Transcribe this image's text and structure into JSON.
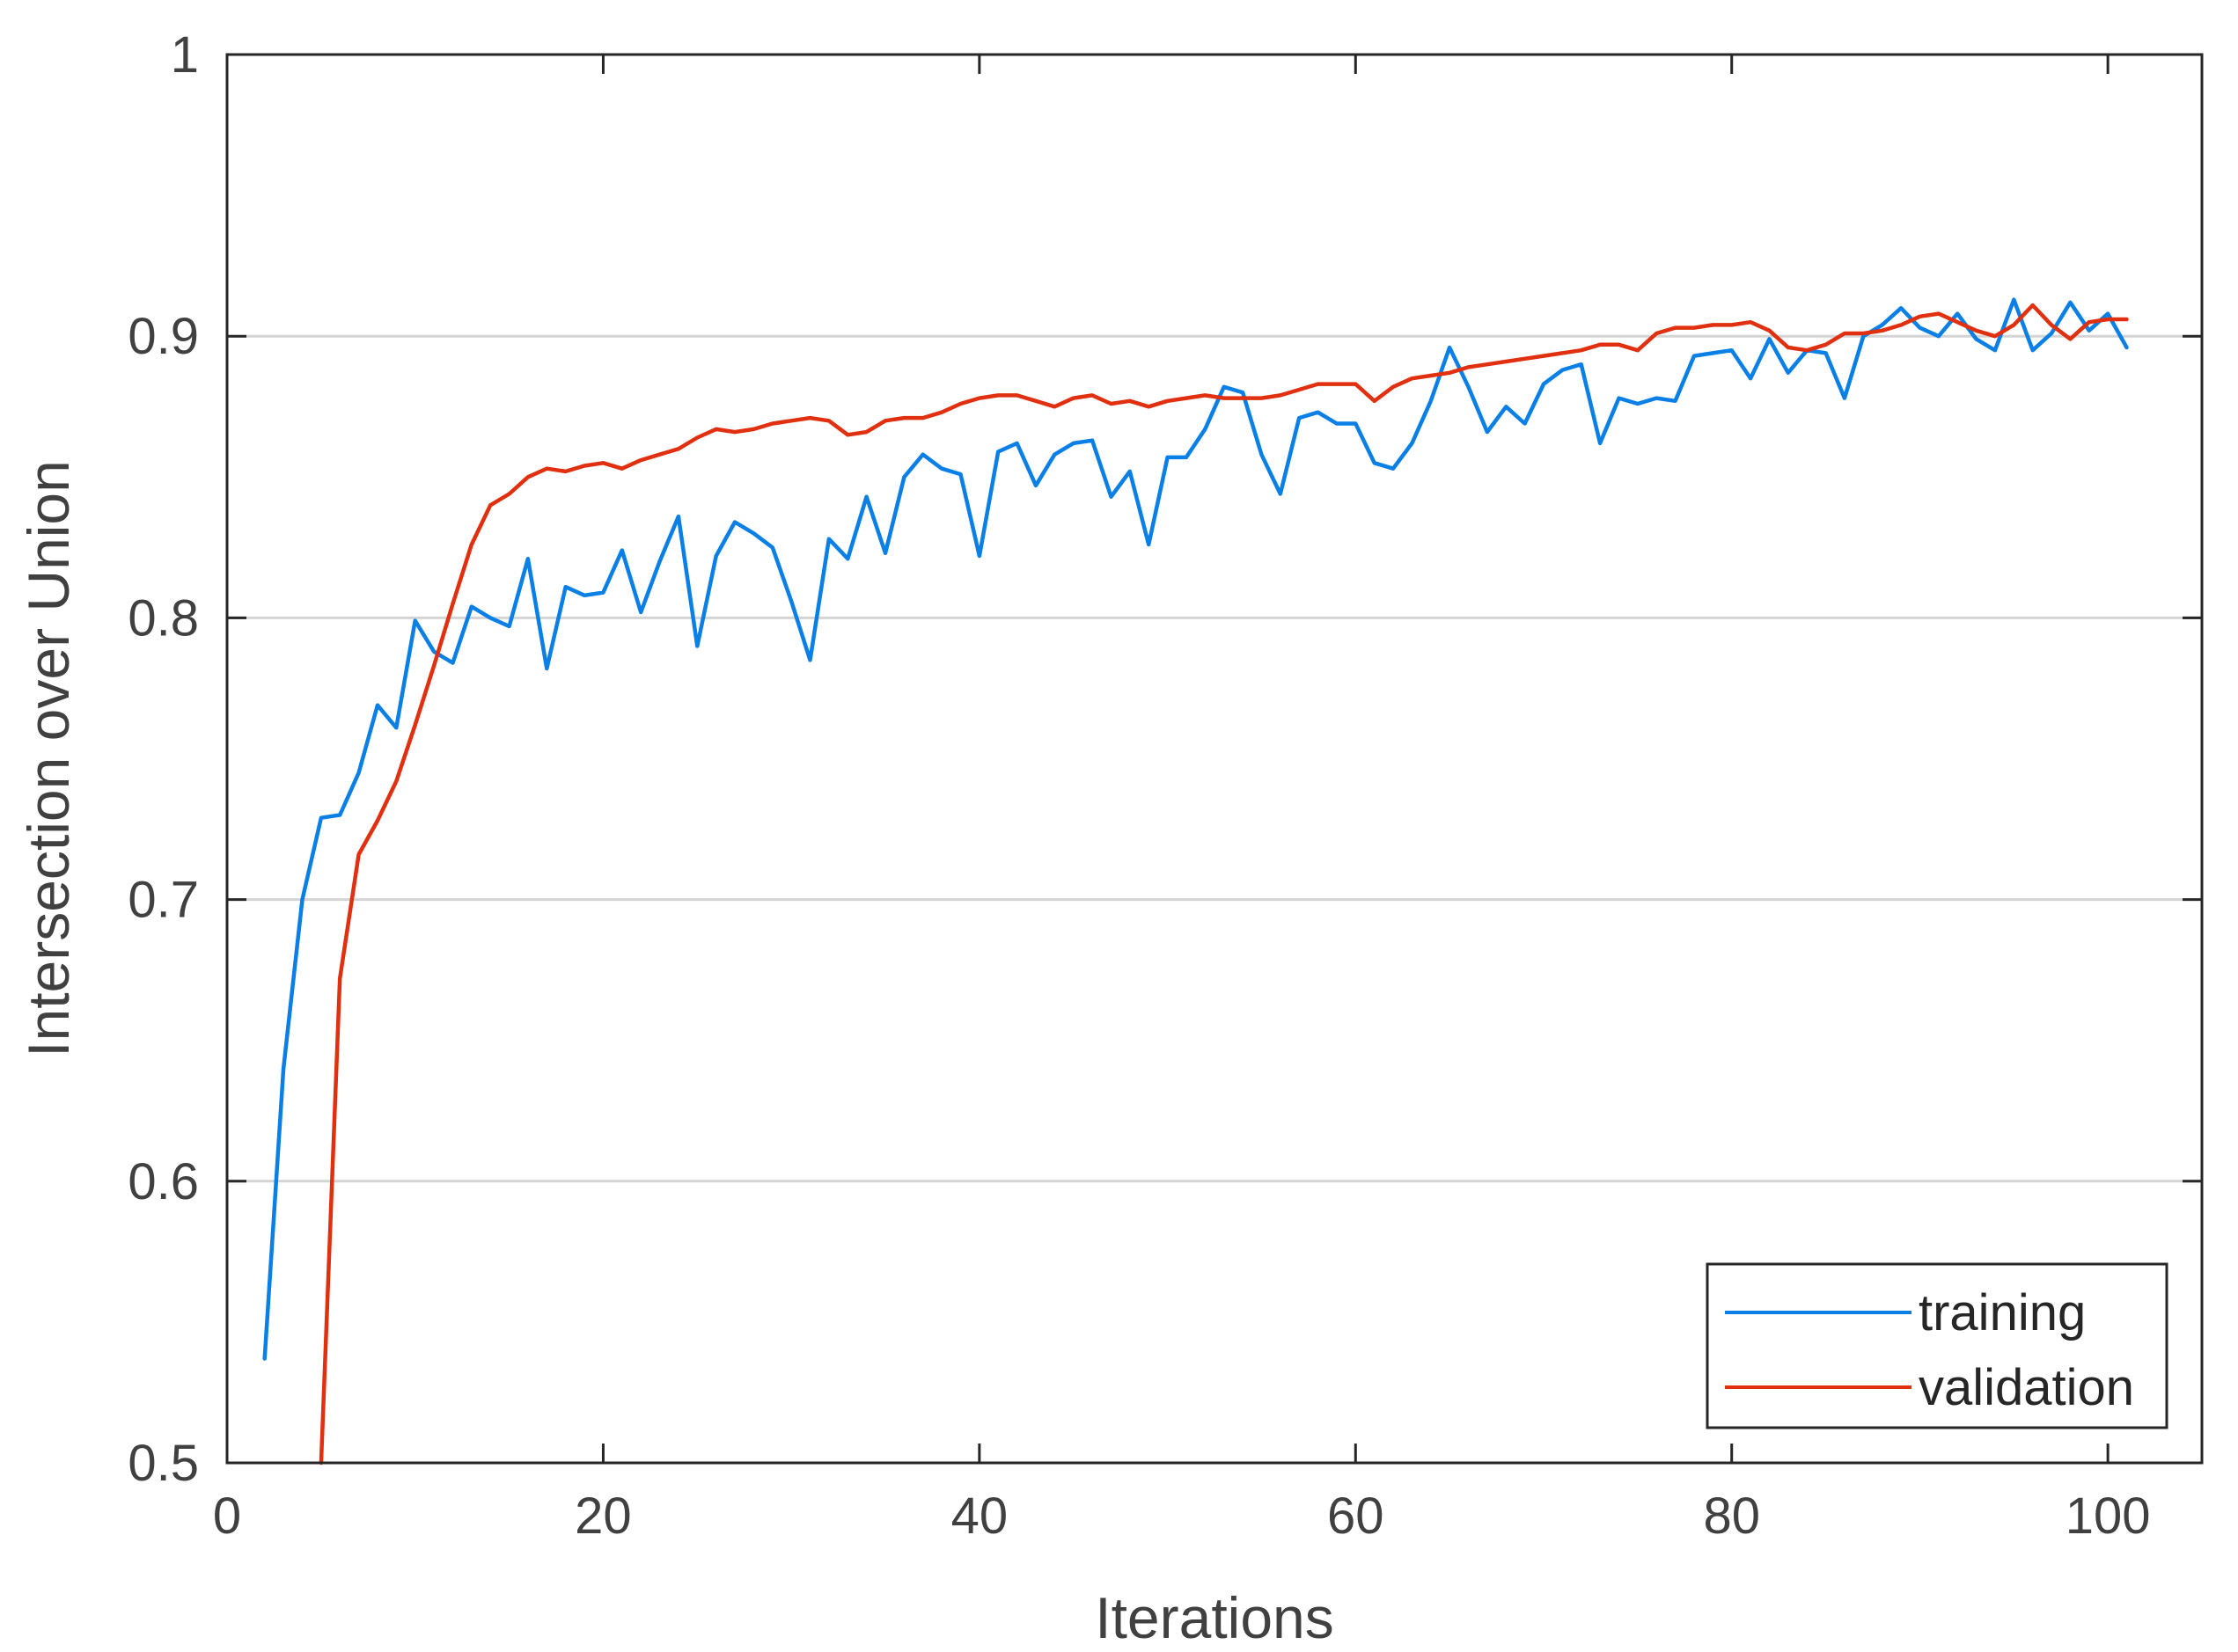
{
  "chart_data": {
    "type": "line",
    "title": "",
    "xlabel": "Iterations",
    "ylabel": "Intersection over Union",
    "xlim": [
      0,
      105
    ],
    "ylim": [
      0.5,
      1
    ],
    "xticks": [
      0,
      20,
      40,
      60,
      80,
      100
    ],
    "yticks": [
      0.5,
      0.6,
      0.7,
      0.8,
      0.9,
      1
    ],
    "ytick_labels": [
      "0.5",
      "0.6",
      "0.7",
      "0.8",
      "0.9",
      "1"
    ],
    "grid": "horizontal",
    "legend_position": "bottom-right",
    "series": [
      {
        "name": "training",
        "color": "#0a7fe6",
        "x": [
          2,
          3,
          4,
          5,
          6,
          7,
          8,
          9,
          10,
          11,
          12,
          13,
          14,
          15,
          16,
          17,
          18,
          19,
          20,
          21,
          22,
          23,
          24,
          25,
          26,
          27,
          28,
          29,
          30,
          31,
          32,
          33,
          34,
          35,
          36,
          37,
          38,
          39,
          40,
          41,
          42,
          43,
          44,
          45,
          46,
          47,
          48,
          49,
          50,
          51,
          52,
          53,
          54,
          55,
          56,
          57,
          58,
          59,
          60,
          61,
          62,
          63,
          64,
          65,
          66,
          67,
          68,
          69,
          70,
          71,
          72,
          73,
          74,
          75,
          76,
          77,
          78,
          79,
          80,
          81,
          82,
          83,
          84,
          85,
          86,
          87,
          88,
          89,
          90,
          91,
          92,
          93,
          94,
          95,
          96,
          97,
          98,
          99,
          100,
          101
        ],
        "y": [
          0.537,
          0.64,
          0.7,
          0.729,
          0.73,
          0.745,
          0.769,
          0.761,
          0.799,
          0.788,
          0.784,
          0.804,
          0.8,
          0.797,
          0.821,
          0.782,
          0.811,
          0.808,
          0.809,
          0.824,
          0.802,
          0.82,
          0.836,
          0.79,
          0.822,
          0.834,
          0.83,
          0.825,
          0.806,
          0.785,
          0.828,
          0.821,
          0.843,
          0.823,
          0.85,
          0.858,
          0.853,
          0.851,
          0.822,
          0.859,
          0.862,
          0.847,
          0.858,
          0.862,
          0.863,
          0.843,
          0.852,
          0.826,
          0.857,
          0.857,
          0.867,
          0.882,
          0.88,
          0.858,
          0.844,
          0.871,
          0.873,
          0.869,
          0.869,
          0.855,
          0.853,
          0.862,
          0.877,
          0.896,
          0.882,
          0.866,
          0.875,
          0.869,
          0.883,
          0.888,
          0.89,
          0.862,
          0.878,
          0.876,
          0.878,
          0.877,
          0.893,
          0.894,
          0.895,
          0.885,
          0.899,
          0.887,
          0.895,
          0.894,
          0.878,
          0.9,
          0.904,
          0.91,
          0.903,
          0.9,
          0.908,
          0.899,
          0.895,
          0.913,
          0.895,
          0.901,
          0.912,
          0.902,
          0.908,
          0.896
        ]
      },
      {
        "name": "validation",
        "color": "#e03010",
        "x": [
          5,
          6,
          7,
          8,
          9,
          10,
          11,
          12,
          13,
          14,
          15,
          16,
          17,
          18,
          19,
          20,
          21,
          22,
          23,
          24,
          25,
          26,
          27,
          28,
          29,
          30,
          31,
          32,
          33,
          34,
          35,
          36,
          37,
          38,
          39,
          40,
          41,
          42,
          43,
          44,
          45,
          46,
          47,
          48,
          49,
          50,
          51,
          52,
          53,
          54,
          55,
          56,
          57,
          58,
          59,
          60,
          61,
          62,
          63,
          64,
          65,
          66,
          67,
          68,
          69,
          70,
          71,
          72,
          73,
          74,
          75,
          76,
          77,
          78,
          79,
          80,
          81,
          82,
          83,
          84,
          85,
          86,
          87,
          88,
          89,
          90,
          91,
          92,
          93,
          94,
          95,
          96,
          97,
          98,
          99,
          100,
          101
        ],
        "y": [
          0.5,
          0.672,
          0.716,
          0.728,
          0.742,
          0.762,
          0.783,
          0.805,
          0.826,
          0.84,
          0.844,
          0.85,
          0.853,
          0.852,
          0.854,
          0.855,
          0.853,
          0.856,
          0.858,
          0.86,
          0.864,
          0.867,
          0.866,
          0.867,
          0.869,
          0.87,
          0.871,
          0.87,
          0.865,
          0.866,
          0.87,
          0.871,
          0.871,
          0.873,
          0.876,
          0.878,
          0.879,
          0.879,
          0.877,
          0.875,
          0.878,
          0.879,
          0.876,
          0.877,
          0.875,
          0.877,
          0.878,
          0.879,
          0.878,
          0.878,
          0.878,
          0.879,
          0.881,
          0.883,
          0.883,
          0.883,
          0.877,
          0.882,
          0.885,
          0.886,
          0.887,
          0.889,
          0.89,
          0.891,
          0.892,
          0.893,
          0.894,
          0.895,
          0.897,
          0.897,
          0.895,
          0.901,
          0.903,
          0.903,
          0.904,
          0.904,
          0.905,
          0.902,
          0.896,
          0.895,
          0.897,
          0.901,
          0.901,
          0.902,
          0.904,
          0.907,
          0.908,
          0.905,
          0.902,
          0.9,
          0.904,
          0.911,
          0.904,
          0.899,
          0.905,
          0.906,
          0.906
        ]
      }
    ]
  }
}
